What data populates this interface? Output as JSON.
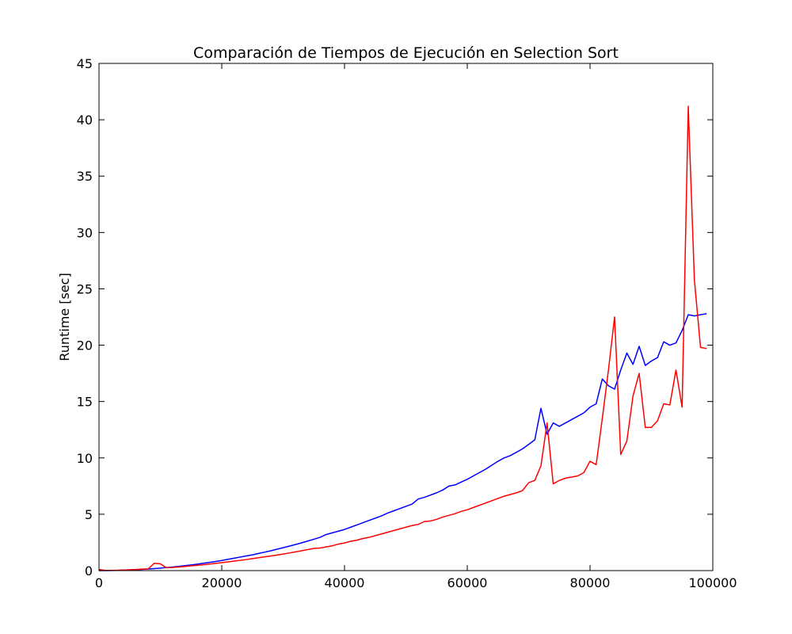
{
  "chart_data": {
    "type": "line",
    "title": "Comparación de Tiempos de Ejecución en Selection Sort",
    "xlabel": "",
    "ylabel": "Runtime [sec]",
    "xlim": [
      0,
      100000
    ],
    "ylim": [
      0,
      45
    ],
    "xticks": [
      0,
      20000,
      40000,
      60000,
      80000,
      100000
    ],
    "yticks": [
      0,
      5,
      10,
      15,
      20,
      25,
      30,
      35,
      40,
      45
    ],
    "grid": false,
    "legend": "none",
    "series": [
      {
        "color": "#0000ff",
        "x": [
          0,
          1000,
          2000,
          3000,
          4000,
          5000,
          6000,
          7000,
          8000,
          9000,
          10000,
          11000,
          12000,
          13000,
          14000,
          15000,
          16000,
          17000,
          18000,
          19000,
          20000,
          21000,
          22000,
          23000,
          24000,
          25000,
          26000,
          27000,
          28000,
          29000,
          30000,
          31000,
          32000,
          33000,
          34000,
          35000,
          36000,
          37000,
          38000,
          39000,
          40000,
          41000,
          42000,
          43000,
          44000,
          45000,
          46000,
          47000,
          48000,
          49000,
          50000,
          51000,
          52000,
          53000,
          54000,
          55000,
          56000,
          57000,
          58000,
          59000,
          60000,
          61000,
          62000,
          63000,
          64000,
          65000,
          66000,
          67000,
          68000,
          69000,
          70000,
          71000,
          72000,
          73000,
          74000,
          75000,
          76000,
          77000,
          78000,
          79000,
          80000,
          81000,
          82000,
          83000,
          84000,
          85000,
          86000,
          87000,
          88000,
          89000,
          90000,
          91000,
          92000,
          93000,
          94000,
          95000,
          96000,
          97000,
          98000,
          99000
        ],
        "y": [
          0.0,
          0.0,
          0.01,
          0.02,
          0.04,
          0.06,
          0.08,
          0.11,
          0.14,
          0.18,
          0.22,
          0.27,
          0.32,
          0.38,
          0.44,
          0.5,
          0.57,
          0.65,
          0.73,
          0.81,
          0.9,
          1.0,
          1.1,
          1.2,
          1.3,
          1.4,
          1.52,
          1.64,
          1.76,
          1.9,
          2.03,
          2.17,
          2.31,
          2.46,
          2.62,
          2.78,
          2.95,
          3.2,
          3.35,
          3.5,
          3.65,
          3.85,
          4.05,
          4.25,
          4.45,
          4.65,
          4.85,
          5.1,
          5.3,
          5.5,
          5.7,
          5.9,
          6.35,
          6.5,
          6.7,
          6.9,
          7.15,
          7.5,
          7.6,
          7.85,
          8.1,
          8.4,
          8.7,
          9.0,
          9.35,
          9.7,
          10.0,
          10.2,
          10.5,
          10.8,
          11.2,
          11.6,
          14.4,
          12.1,
          13.1,
          12.8,
          13.1,
          13.4,
          13.7,
          14.0,
          14.5,
          14.8,
          17.0,
          16.4,
          16.1,
          17.8,
          19.3,
          18.3,
          19.9,
          18.2,
          18.6,
          18.9,
          20.3,
          20.0,
          20.2,
          21.3,
          22.7,
          22.6,
          22.7,
          22.8
        ]
      },
      {
        "color": "#ff0000",
        "x": [
          0,
          1000,
          2000,
          3000,
          4000,
          5000,
          6000,
          7000,
          8000,
          9000,
          10000,
          11000,
          12000,
          13000,
          14000,
          15000,
          16000,
          17000,
          18000,
          19000,
          20000,
          21000,
          22000,
          23000,
          24000,
          25000,
          26000,
          27000,
          28000,
          29000,
          30000,
          31000,
          32000,
          33000,
          34000,
          35000,
          36000,
          37000,
          38000,
          39000,
          40000,
          41000,
          42000,
          43000,
          44000,
          45000,
          46000,
          47000,
          48000,
          49000,
          50000,
          51000,
          52000,
          53000,
          54000,
          55000,
          56000,
          57000,
          58000,
          59000,
          60000,
          61000,
          62000,
          63000,
          64000,
          65000,
          66000,
          67000,
          68000,
          69000,
          70000,
          71000,
          72000,
          73000,
          74000,
          75000,
          76000,
          77000,
          78000,
          79000,
          80000,
          81000,
          82000,
          83000,
          84000,
          85000,
          86000,
          87000,
          88000,
          89000,
          90000,
          91000,
          92000,
          93000,
          94000,
          95000,
          96000,
          97000,
          98000,
          99000
        ],
        "y": [
          0.1,
          0.02,
          0.02,
          0.03,
          0.05,
          0.07,
          0.1,
          0.13,
          0.15,
          0.65,
          0.6,
          0.25,
          0.28,
          0.32,
          0.37,
          0.42,
          0.47,
          0.52,
          0.58,
          0.64,
          0.7,
          0.77,
          0.84,
          0.91,
          0.98,
          1.06,
          1.14,
          1.22,
          1.3,
          1.38,
          1.47,
          1.56,
          1.66,
          1.76,
          1.86,
          1.97,
          2.0,
          2.1,
          2.2,
          2.35,
          2.45,
          2.6,
          2.7,
          2.85,
          2.95,
          3.1,
          3.25,
          3.4,
          3.55,
          3.7,
          3.85,
          4.0,
          4.1,
          4.35,
          4.4,
          4.55,
          4.75,
          4.9,
          5.05,
          5.25,
          5.4,
          5.6,
          5.8,
          6.0,
          6.2,
          6.4,
          6.6,
          6.75,
          6.9,
          7.1,
          7.8,
          8.0,
          9.3,
          13.1,
          7.7,
          8.0,
          8.2,
          8.3,
          8.4,
          8.7,
          9.7,
          9.4,
          13.5,
          17.8,
          22.5,
          10.3,
          11.5,
          15.5,
          17.5,
          12.7,
          12.7,
          13.3,
          14.8,
          14.7,
          17.8,
          14.5,
          41.2,
          25.8,
          19.8,
          19.7
        ]
      }
    ]
  }
}
